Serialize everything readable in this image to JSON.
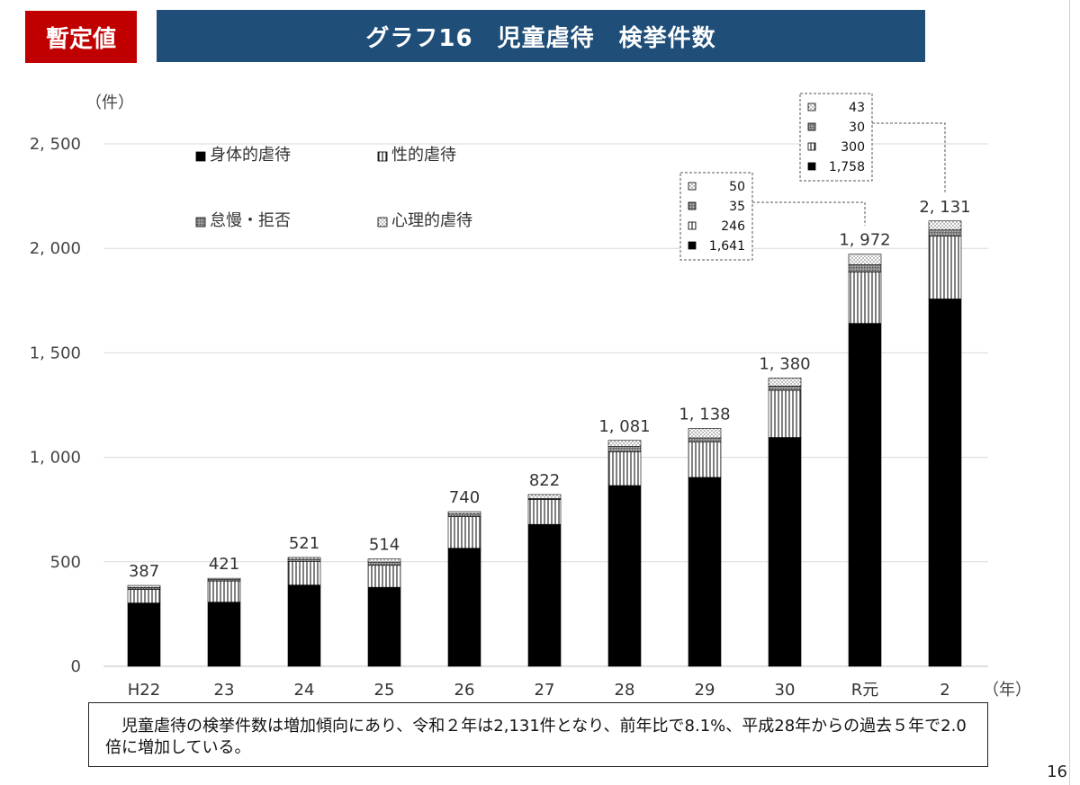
{
  "header": {
    "badge": "暫定値",
    "title": "グラフ16　児童虐待　検挙件数"
  },
  "caption": "　児童虐待の検挙件数は増加傾向にあり、令和２年は2,131件となり、前年比で8.1%、平成28年からの過去５年で2.0倍に増加している。",
  "page_number": "16",
  "colors": {
    "badge": "#c00000",
    "title_bar": "#1f4e79",
    "physical": "#000000",
    "sexual": "vertical-stripes",
    "neglect": "gray",
    "psychological": "dotted"
  },
  "chart_data": {
    "type": "bar",
    "stacked": true,
    "y_unit_label": "（件）",
    "x_unit_label": "（年）",
    "ylim": [
      0,
      2500
    ],
    "yticks": [
      0,
      500,
      1000,
      1500,
      2000,
      2500
    ],
    "ytick_labels": [
      "0",
      "500",
      "1, 000",
      "1, 500",
      "2, 000",
      "2, 500"
    ],
    "grid": true,
    "categories": [
      "H22",
      "23",
      "24",
      "25",
      "26",
      "27",
      "28",
      "29",
      "30",
      "R元",
      "2"
    ],
    "series": [
      {
        "name": "身体的虐待",
        "key": "physical",
        "values": [
          303,
          307,
          389,
          378,
          565,
          679,
          865,
          904,
          1095,
          1641,
          1758
        ]
      },
      {
        "name": "性的虐待",
        "key": "sexual",
        "values": [
          65,
          101,
          113,
          105,
          151,
          119,
          162,
          169,
          226,
          246,
          300
        ]
      },
      {
        "name": "怠慢・拒否",
        "key": "neglect",
        "values": [
          9,
          7,
          10,
          16,
          13,
          5,
          25,
          20,
          20,
          35,
          30
        ]
      },
      {
        "name": "心理的虐待",
        "key": "psychological",
        "values": [
          10,
          6,
          9,
          15,
          11,
          19,
          29,
          45,
          39,
          50,
          43
        ]
      }
    ],
    "totals": [
      387,
      421,
      521,
      514,
      740,
      822,
      1081,
      1138,
      1380,
      1972,
      2131
    ],
    "total_labels": [
      "387",
      "421",
      "521",
      "514",
      "740",
      "822",
      "1, 081",
      "1, 138",
      "1, 380",
      "1, 972",
      "2, 131"
    ],
    "callouts": [
      {
        "category": "R元",
        "values": [
          "50",
          "35",
          "246",
          "1,641"
        ]
      },
      {
        "category": "2",
        "values": [
          "43",
          "30",
          "300",
          "1,758"
        ]
      }
    ]
  }
}
